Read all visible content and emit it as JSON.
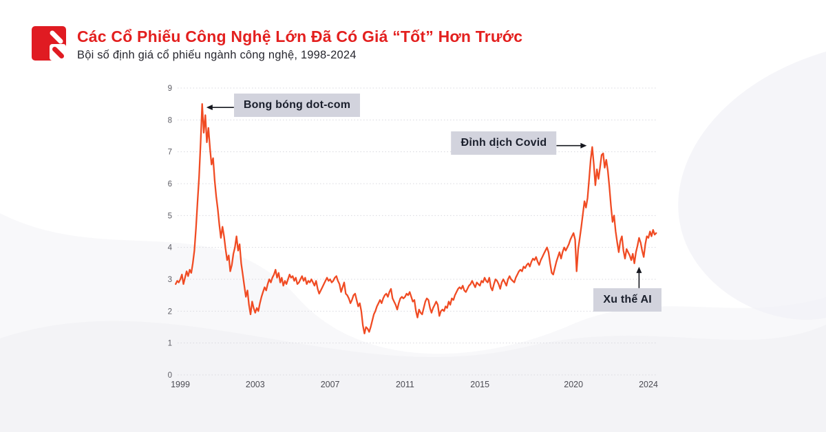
{
  "header": {
    "brand_color": "#e01b22",
    "logo": "red-square-double-slash"
  },
  "chart_data": {
    "type": "line",
    "title": "Các Cổ Phiếu Công Nghệ Lớn Đã Có Giá “Tốt” Hơn Trước",
    "subtitle": "Bội số định giá cổ phiếu ngành công nghệ, 1998-2024",
    "line_color": "#f04b23",
    "grid": "horizontal-dotted",
    "legend": "none",
    "xlabel": "",
    "ylabel": "",
    "ylim": [
      0,
      9
    ],
    "y_ticks": [
      0,
      1,
      2,
      3,
      4,
      5,
      6,
      7,
      8,
      9
    ],
    "x_ticks": [
      1999,
      2003,
      2007,
      2011,
      2015,
      2020,
      2024
    ],
    "series": {
      "start_year_decimal": 1998.75,
      "interval_months": 1,
      "values": [
        2.85,
        2.95,
        2.9,
        3.0,
        3.15,
        2.85,
        3.05,
        3.25,
        3.1,
        3.3,
        3.2,
        3.5,
        3.9,
        4.6,
        5.4,
        6.2,
        7.3,
        8.5,
        7.6,
        8.15,
        7.3,
        7.75,
        7.1,
        6.6,
        6.8,
        6.1,
        5.6,
        5.2,
        4.7,
        4.3,
        4.65,
        4.35,
        3.95,
        3.6,
        3.75,
        3.25,
        3.45,
        3.8,
        4.0,
        4.35,
        3.9,
        4.1,
        3.5,
        3.15,
        2.8,
        2.45,
        2.65,
        2.2,
        1.9,
        2.3,
        2.1,
        1.95,
        2.1,
        2.0,
        2.25,
        2.45,
        2.6,
        2.75,
        2.65,
        2.85,
        3.0,
        2.9,
        3.05,
        3.15,
        3.3,
        3.05,
        3.2,
        2.9,
        3.05,
        2.8,
        2.95,
        2.85,
        3.0,
        3.15,
        3.05,
        3.1,
        2.95,
        3.05,
        2.85,
        2.9,
        3.0,
        3.1,
        2.95,
        3.05,
        2.85,
        2.95,
        2.9,
        3.0,
        2.9,
        2.8,
        2.95,
        2.7,
        2.55,
        2.65,
        2.75,
        2.85,
        2.95,
        3.05,
        2.95,
        3.0,
        2.9,
        2.95,
        3.05,
        3.1,
        2.95,
        2.85,
        2.6,
        2.75,
        2.9,
        2.55,
        2.5,
        2.4,
        2.25,
        2.35,
        2.5,
        2.55,
        2.35,
        2.15,
        2.25,
        2.0,
        1.55,
        1.3,
        1.5,
        1.45,
        1.35,
        1.5,
        1.7,
        1.9,
        2.0,
        2.15,
        2.25,
        2.35,
        2.25,
        2.4,
        2.5,
        2.55,
        2.45,
        2.6,
        2.7,
        2.4,
        2.3,
        2.2,
        2.05,
        2.25,
        2.4,
        2.45,
        2.4,
        2.45,
        2.55,
        2.5,
        2.6,
        2.45,
        2.3,
        2.35,
        2.0,
        1.8,
        2.05,
        1.95,
        1.9,
        2.1,
        2.3,
        2.4,
        2.35,
        2.1,
        1.95,
        2.1,
        2.2,
        2.3,
        2.2,
        1.85,
        2.0,
        2.05,
        2.0,
        2.15,
        2.1,
        2.3,
        2.2,
        2.4,
        2.35,
        2.5,
        2.6,
        2.7,
        2.75,
        2.7,
        2.8,
        2.65,
        2.6,
        2.7,
        2.8,
        2.85,
        2.95,
        2.85,
        2.75,
        2.9,
        2.85,
        2.8,
        2.95,
        2.9,
        3.05,
        2.95,
        2.9,
        3.05,
        2.75,
        2.65,
        2.85,
        3.0,
        2.95,
        2.85,
        2.7,
        2.9,
        3.0,
        2.9,
        2.8,
        3.0,
        3.1,
        3.0,
        2.95,
        2.9,
        3.05,
        3.15,
        3.25,
        3.3,
        3.25,
        3.4,
        3.35,
        3.45,
        3.5,
        3.4,
        3.55,
        3.65,
        3.6,
        3.7,
        3.55,
        3.45,
        3.6,
        3.7,
        3.8,
        3.9,
        4.0,
        3.85,
        3.5,
        3.2,
        3.15,
        3.35,
        3.55,
        3.7,
        3.85,
        3.65,
        3.85,
        4.0,
        3.9,
        4.0,
        4.1,
        4.25,
        4.35,
        4.45,
        4.25,
        3.25,
        3.95,
        4.3,
        4.65,
        5.05,
        5.45,
        5.25,
        5.55,
        6.15,
        6.75,
        7.15,
        6.6,
        5.95,
        6.45,
        6.15,
        6.5,
        6.9,
        6.95,
        6.5,
        6.75,
        6.4,
        5.9,
        5.3,
        4.8,
        5.0,
        4.5,
        4.15,
        3.85,
        4.2,
        4.35,
        3.9,
        3.65,
        3.95,
        3.85,
        3.75,
        3.6,
        3.8,
        3.5,
        3.85,
        4.05,
        4.3,
        4.15,
        3.9,
        3.7,
        4.1,
        4.35,
        4.3,
        4.5,
        4.35,
        4.55,
        4.4,
        4.45
      ]
    },
    "annotations": [
      {
        "label": "Bong bóng dot-com",
        "year": 2000.17,
        "value": 8.5,
        "direction": "left"
      },
      {
        "label": "Đỉnh dịch Covid",
        "year": 2021.0,
        "value": 7.15,
        "direction": "right"
      },
      {
        "label": "Xu thế AI",
        "year": 2023.5,
        "value": 3.5,
        "direction": "up"
      }
    ]
  }
}
